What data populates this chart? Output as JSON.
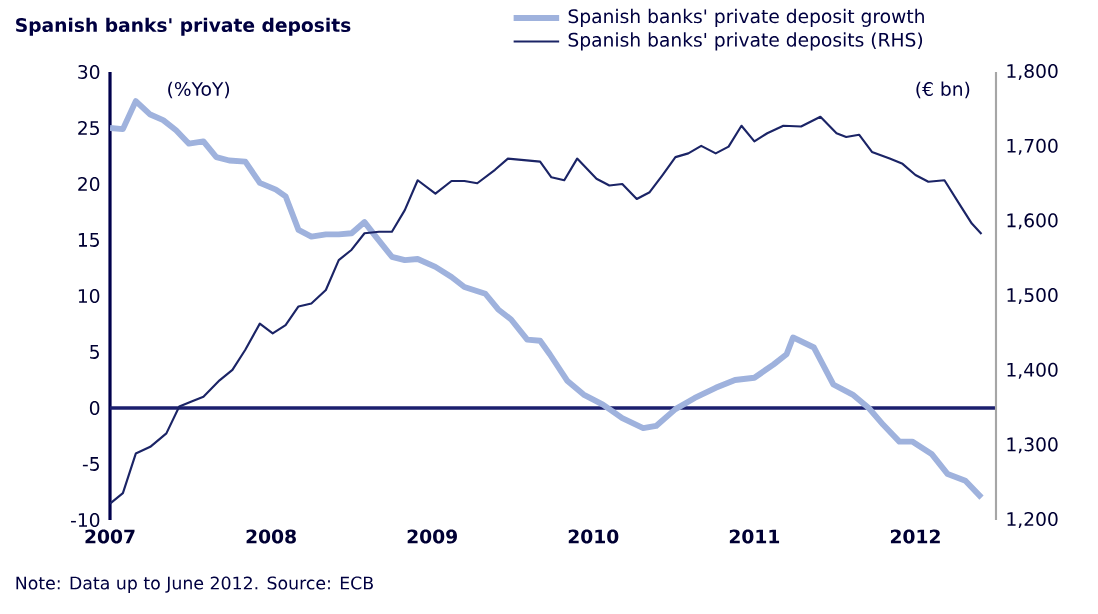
{
  "chart_data": {
    "type": "line",
    "title": "Spanish banks' private deposits",
    "ylabel": "(%YoY)",
    "y2label": "(€ bn)",
    "annotations": [
      "Note: Data up to June 2012. Source: ECB"
    ],
    "xlim": [
      2007,
      2012.5
    ],
    "xticks": [
      2007,
      2008,
      2009,
      2010,
      2011,
      2012
    ],
    "ylim": [
      -10,
      30
    ],
    "yticks": [
      -10,
      -5,
      0,
      5,
      10,
      15,
      20,
      25,
      30
    ],
    "y2lim": [
      1200,
      1800
    ],
    "y2ticks": [
      {
        "value": 1200,
        "label": "1,200"
      },
      {
        "value": 1300,
        "label": "1,300"
      },
      {
        "value": 1400,
        "label": "1,400"
      },
      {
        "value": 1500,
        "label": "1,500"
      },
      {
        "value": 1600,
        "label": "1,600"
      },
      {
        "value": 1700,
        "label": "1,700"
      },
      {
        "value": 1800,
        "label": "1,800"
      }
    ],
    "legend": "top",
    "line_style": "solid",
    "ref_lines": [
      {
        "axis": "y",
        "value": 0,
        "color": "#1b1f6e"
      }
    ],
    "series": [
      {
        "name": "Spanish banks' private deposit growth",
        "color": "#9fb2dd",
        "x": [
          2007.0,
          2007.08,
          2007.16,
          2007.25,
          2007.33,
          2007.41,
          2007.49,
          2007.58,
          2007.66,
          2007.74,
          2007.84,
          2007.93,
          2008.03,
          2008.09,
          2008.17,
          2008.25,
          2008.34,
          2008.42,
          2008.5,
          2008.58,
          2008.65,
          2008.75,
          2008.83,
          2008.91,
          2009.02,
          2009.12,
          2009.2,
          2009.33,
          2009.41,
          2009.49,
          2009.59,
          2009.67,
          2009.73,
          2009.84,
          2009.94,
          2010.06,
          2010.18,
          2010.31,
          2010.39,
          2010.51,
          2010.63,
          2010.76,
          2010.88,
          2011.0,
          2011.12,
          2011.2,
          2011.24,
          2011.37,
          2011.49,
          2011.61,
          2011.71,
          2011.8,
          2011.9,
          2011.98,
          2012.1,
          2012.2,
          2012.31,
          2012.41
        ],
        "values": [
          25.0,
          24.9,
          27.4,
          26.2,
          25.7,
          24.8,
          23.6,
          23.8,
          22.4,
          22.1,
          22.0,
          20.1,
          19.5,
          18.9,
          15.9,
          15.3,
          15.5,
          15.5,
          15.6,
          16.6,
          15.3,
          13.5,
          13.2,
          13.3,
          12.6,
          11.7,
          10.8,
          10.2,
          8.8,
          7.9,
          6.1,
          6.0,
          4.8,
          2.4,
          1.2,
          0.3,
          -0.9,
          -1.8,
          -1.6,
          -0.1,
          0.9,
          1.8,
          2.5,
          2.7,
          3.9,
          4.8,
          6.3,
          5.4,
          2.1,
          1.2,
          0.0,
          -1.5,
          -3.0,
          -3.0,
          -4.1,
          -5.9,
          -6.5,
          -8.0
        ]
      },
      {
        "name": "Spanish banks' private deposits (RHS)",
        "color": "#1b2466",
        "axis": "y2",
        "x": [
          2007.0,
          2007.08,
          2007.16,
          2007.25,
          2007.35,
          2007.43,
          2007.51,
          2007.58,
          2007.68,
          2007.76,
          2007.84,
          2007.93,
          2008.01,
          2008.09,
          2008.17,
          2008.25,
          2008.34,
          2008.42,
          2008.5,
          2008.58,
          2008.67,
          2008.75,
          2008.83,
          2008.91,
          2009.02,
          2009.12,
          2009.2,
          2009.28,
          2009.39,
          2009.47,
          2009.57,
          2009.67,
          2009.74,
          2009.82,
          2009.9,
          2010.02,
          2010.1,
          2010.18,
          2010.27,
          2010.35,
          2010.43,
          2010.51,
          2010.59,
          2010.67,
          2010.76,
          2010.84,
          2010.92,
          2011.0,
          2011.08,
          2011.18,
          2011.29,
          2011.41,
          2011.51,
          2011.57,
          2011.65,
          2011.73,
          2011.84,
          2011.92,
          2012.0,
          2012.08,
          2012.18,
          2012.27,
          2012.35,
          2012.41
        ],
        "values": [
          1222,
          1236,
          1289,
          1298,
          1316,
          1352,
          1359,
          1365,
          1387,
          1401,
          1428,
          1463,
          1450,
          1461,
          1486,
          1490,
          1508,
          1548,
          1562,
          1584,
          1586,
          1586,
          1615,
          1655,
          1637,
          1654,
          1654,
          1651,
          1669,
          1684,
          1682,
          1680,
          1659,
          1655,
          1684,
          1657,
          1648,
          1650,
          1630,
          1639,
          1662,
          1686,
          1691,
          1701,
          1691,
          1700,
          1728,
          1707,
          1718,
          1728,
          1727,
          1740,
          1718,
          1713,
          1716,
          1693,
          1684,
          1677,
          1662,
          1653,
          1655,
          1624,
          1597,
          1583
        ]
      }
    ]
  }
}
